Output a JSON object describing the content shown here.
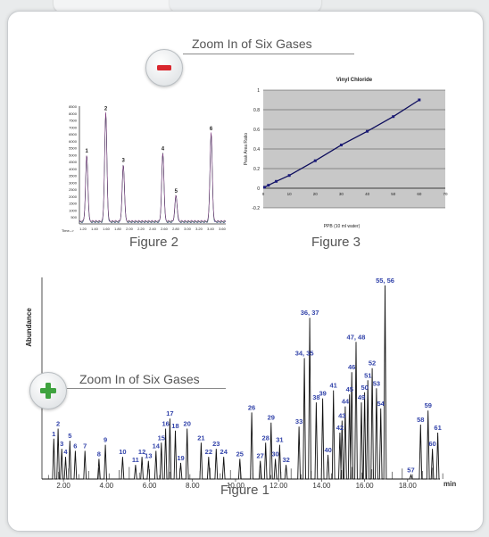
{
  "zoom_controls": {
    "out_label": "Zoom In of Six Gases",
    "in_label": "Zoom In of Six Gases"
  },
  "captions": {
    "figure1": "Figure 1",
    "figure2": "Figure 2",
    "figure3": "Figure 3"
  },
  "colors": {
    "minus_red": "#d9272e",
    "plus_green": "#3fa33f",
    "peak_label_blue": "#3344aa"
  },
  "chart_data": [
    {
      "id": "figure2",
      "type": "line",
      "xlabel": "Time-->",
      "x_ticks": [
        "1.20",
        "1.40",
        "1.60",
        "1.80",
        "2.00",
        "2.20",
        "2.40",
        "2.60",
        "2.80",
        "3.00",
        "3.20",
        "3.40",
        "3.60"
      ],
      "y_ticks": [
        "8500",
        "8000",
        "7500",
        "7000",
        "6500",
        "6000",
        "5500",
        "5000",
        "4500",
        "4000",
        "3500",
        "3000",
        "2500",
        "2000",
        "1500",
        "1000",
        "500"
      ],
      "peaks": [
        {
          "label": "1",
          "t": 0.05,
          "h": 0.56
        },
        {
          "label": "2",
          "t": 0.18,
          "h": 0.92
        },
        {
          "label": "3",
          "t": 0.3,
          "h": 0.48
        },
        {
          "label": "4",
          "t": 0.57,
          "h": 0.58
        },
        {
          "label": "5",
          "t": 0.66,
          "h": 0.22
        },
        {
          "label": "6",
          "t": 0.9,
          "h": 0.75
        }
      ]
    },
    {
      "id": "figure3",
      "type": "scatter",
      "title": "Vinyl Chloride",
      "xlabel": "PPB (10 ml water)",
      "ylabel": "Peak Area Ratio",
      "y_ticks": [
        "1",
        "0.8",
        "0.6",
        "0.4",
        "0.2",
        "0",
        "-0.2"
      ],
      "x_ticks": [
        "0",
        "10",
        "20",
        "30",
        "40",
        "50",
        "60",
        "70"
      ],
      "xlim": [
        0,
        70
      ],
      "ylim": [
        -0.2,
        1
      ],
      "grid": true,
      "points": [
        [
          0.5,
          0.01
        ],
        [
          2,
          0.03
        ],
        [
          5,
          0.07
        ],
        [
          10,
          0.13
        ],
        [
          20,
          0.28
        ],
        [
          30,
          0.44
        ],
        [
          40,
          0.58
        ],
        [
          50,
          0.73
        ],
        [
          60,
          0.9
        ]
      ]
    },
    {
      "id": "figure1",
      "type": "line",
      "ylabel": "Abundance",
      "x_unit": "min",
      "x_ticks": [
        "2.00",
        "4.00",
        "6.00",
        "8.00",
        "10.00",
        "12.00",
        "14.00",
        "16.00",
        "18.00"
      ],
      "xlim": [
        1,
        19.5
      ],
      "peaks": [
        {
          "label": "1",
          "t": 1.55,
          "h": 0.2
        },
        {
          "label": "2",
          "t": 1.75,
          "h": 0.25
        },
        {
          "label": "3",
          "t": 1.92,
          "h": 0.15
        },
        {
          "label": "4",
          "t": 2.1,
          "h": 0.11
        },
        {
          "label": "5",
          "t": 2.3,
          "h": 0.19
        },
        {
          "label": "6",
          "t": 2.55,
          "h": 0.14
        },
        {
          "label": "7",
          "t": 3.0,
          "h": 0.14
        },
        {
          "label": "8",
          "t": 3.65,
          "h": 0.1
        },
        {
          "label": "9",
          "t": 3.95,
          "h": 0.17
        },
        {
          "label": "10",
          "t": 4.75,
          "h": 0.11
        },
        {
          "label": "11",
          "t": 5.35,
          "h": 0.07
        },
        {
          "label": "12",
          "t": 5.65,
          "h": 0.11
        },
        {
          "label": "13",
          "t": 5.95,
          "h": 0.09
        },
        {
          "label": "14",
          "t": 6.3,
          "h": 0.14
        },
        {
          "label": "15",
          "t": 6.55,
          "h": 0.18
        },
        {
          "label": "16",
          "t": 6.75,
          "h": 0.25
        },
        {
          "label": "17",
          "t": 6.95,
          "h": 0.3
        },
        {
          "label": "18",
          "t": 7.2,
          "h": 0.24
        },
        {
          "label": "19",
          "t": 7.45,
          "h": 0.08
        },
        {
          "label": "20",
          "t": 7.75,
          "h": 0.25
        },
        {
          "label": "21",
          "t": 8.4,
          "h": 0.18
        },
        {
          "label": "22",
          "t": 8.75,
          "h": 0.11
        },
        {
          "label": "23",
          "t": 9.1,
          "h": 0.15
        },
        {
          "label": "24",
          "t": 9.45,
          "h": 0.11
        },
        {
          "label": "25",
          "t": 10.2,
          "h": 0.1
        },
        {
          "label": "26",
          "t": 10.75,
          "h": 0.33
        },
        {
          "label": "27",
          "t": 11.15,
          "h": 0.09
        },
        {
          "label": "28",
          "t": 11.4,
          "h": 0.18
        },
        {
          "label": "29",
          "t": 11.65,
          "h": 0.28
        },
        {
          "label": "30",
          "t": 11.85,
          "h": 0.1
        },
        {
          "label": "31",
          "t": 12.05,
          "h": 0.17
        },
        {
          "label": "32",
          "t": 12.35,
          "h": 0.07
        },
        {
          "label": "33",
          "t": 12.95,
          "h": 0.26
        },
        {
          "label": "34, 35",
          "t": 13.2,
          "h": 0.6
        },
        {
          "label": "36, 37",
          "t": 13.45,
          "h": 0.8
        },
        {
          "label": "38",
          "t": 13.75,
          "h": 0.38
        },
        {
          "label": "39",
          "t": 14.05,
          "h": 0.4
        },
        {
          "label": "40",
          "t": 14.3,
          "h": 0.12
        },
        {
          "label": "41",
          "t": 14.55,
          "h": 0.44
        },
        {
          "label": "42",
          "t": 14.85,
          "h": 0.23
        },
        {
          "label": "43",
          "t": 14.95,
          "h": 0.29
        },
        {
          "label": "44",
          "t": 15.1,
          "h": 0.36
        },
        {
          "label": "45",
          "t": 15.3,
          "h": 0.42
        },
        {
          "label": "46",
          "t": 15.4,
          "h": 0.53
        },
        {
          "label": "47, 48",
          "t": 15.6,
          "h": 0.68
        },
        {
          "label": "49",
          "t": 15.85,
          "h": 0.38
        },
        {
          "label": "50",
          "t": 16.0,
          "h": 0.43
        },
        {
          "label": "51",
          "t": 16.15,
          "h": 0.49
        },
        {
          "label": "52",
          "t": 16.35,
          "h": 0.55
        },
        {
          "label": "53",
          "t": 16.55,
          "h": 0.45
        },
        {
          "label": "54",
          "t": 16.75,
          "h": 0.35
        },
        {
          "label": "55, 56",
          "t": 16.95,
          "h": 0.96
        },
        {
          "label": "57",
          "t": 18.15,
          "h": 0.02
        },
        {
          "label": "58",
          "t": 18.6,
          "h": 0.27
        },
        {
          "label": "59",
          "t": 18.95,
          "h": 0.34
        },
        {
          "label": "60",
          "t": 19.15,
          "h": 0.15
        },
        {
          "label": "61",
          "t": 19.4,
          "h": 0.23
        }
      ]
    }
  ]
}
